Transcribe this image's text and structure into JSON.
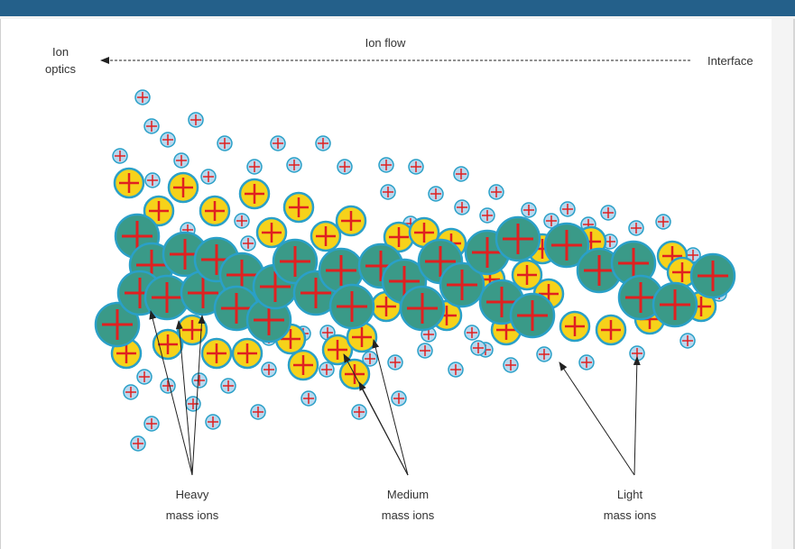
{
  "labels": {
    "ion_flow": "Ion flow",
    "ion_optics_line1": "Ion",
    "ion_optics_line2": "optics",
    "interface": "Interface",
    "heavy_line1": "Heavy",
    "heavy_line2": "mass ions",
    "medium_line1": "Medium",
    "medium_line2": "mass ions",
    "light_line1": "Light",
    "light_line2": "mass ions"
  },
  "colors": {
    "header_bar": "#24608a",
    "heavy_fill": "#3a9a88",
    "medium_fill": "#f6d21a",
    "light_fill": "#b9d8ee",
    "ion_outline": "#2aa0c8",
    "plus_sign": "#e02020"
  }
}
